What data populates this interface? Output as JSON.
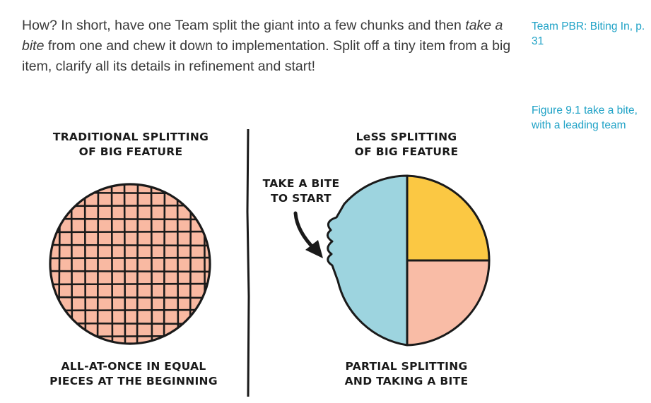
{
  "text": {
    "lead": "How? In short, have one Team split the giant into a few chunks and then",
    "emphasis": "take a bite",
    "middle": " from one and chew it down to implementation. Split off a tiny item from a big item, clarify all its details in refinement and start!"
  },
  "sidenotes": {
    "reference": "Team PBR: Biting In, p. 31",
    "figure_caption": "Figure 9.1  take a bite, with a leading team"
  },
  "figure": {
    "left_title_line1": "TRADITIONAL SPLITTING",
    "left_title_line2": "OF BIG FEATURE",
    "right_title_line1": "LeSS SPLITTING",
    "right_title_line2": "OF BIG FEATURE",
    "arrow_label_line1": "TAKE A BITE",
    "arrow_label_line2": "TO START",
    "left_caption_line1": "ALL-AT-ONCE IN EQUAL",
    "left_caption_line2": "PIECES AT THE BEGINNING",
    "right_caption_line1": "PARTIAL SPLITTING",
    "right_caption_line2": "AND TAKING A BITE"
  },
  "colors": {
    "grid_fill": "#f9b9a2",
    "blue_piece": "#9dd4df",
    "yellow_piece": "#fbc843",
    "salmon_piece": "#f9bca6",
    "sidenote_text": "#1fa2c6"
  }
}
